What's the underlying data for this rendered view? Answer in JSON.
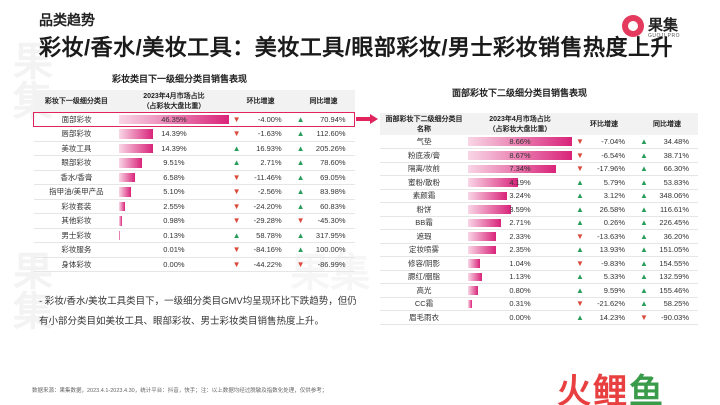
{
  "watermark": "果集",
  "header": {
    "section": "品类趋势",
    "title": "彩妆/香水/美妆工具：美妆工具/眼部彩妆/男士彩妆销售热度上升"
  },
  "logo": {
    "name": "果集",
    "sub": "GUOJI.PRO"
  },
  "left_table": {
    "title": "彩妆类目下一级细分类目销售表现",
    "headers": [
      "彩妆下一级细分类目",
      "2023年4月市场占比\n（占彩妆大盘比重）",
      "环比增速",
      "同比增速"
    ],
    "rows": [
      {
        "name": "面部彩妆",
        "share": "46.35%",
        "share_value": 46.35,
        "mom": "-4.00%",
        "mom_dir": "down",
        "yoy": "70.94%",
        "yoy_dir": "up"
      },
      {
        "name": "唇部彩妆",
        "share": "14.39%",
        "share_value": 14.39,
        "mom": "-1.63%",
        "mom_dir": "down",
        "yoy": "112.60%",
        "yoy_dir": "up"
      },
      {
        "name": "美妆工具",
        "share": "14.39%",
        "share_value": 14.39,
        "mom": "16.93%",
        "mom_dir": "up",
        "yoy": "205.26%",
        "yoy_dir": "up"
      },
      {
        "name": "眼部彩妆",
        "share": "9.51%",
        "share_value": 9.51,
        "mom": "2.71%",
        "mom_dir": "up",
        "yoy": "78.60%",
        "yoy_dir": "up"
      },
      {
        "name": "香水/香膏",
        "share": "6.58%",
        "share_value": 6.58,
        "mom": "-11.46%",
        "mom_dir": "down",
        "yoy": "69.05%",
        "yoy_dir": "up"
      },
      {
        "name": "指甲油/美甲产品",
        "share": "5.10%",
        "share_value": 5.1,
        "mom": "-2.56%",
        "mom_dir": "down",
        "yoy": "83.98%",
        "yoy_dir": "up"
      },
      {
        "name": "彩妆套装",
        "share": "2.55%",
        "share_value": 2.55,
        "mom": "-24.20%",
        "mom_dir": "down",
        "yoy": "60.83%",
        "yoy_dir": "up"
      },
      {
        "name": "其他彩妆",
        "share": "0.98%",
        "share_value": 0.98,
        "mom": "-29.28%",
        "mom_dir": "down",
        "yoy": "-45.30%",
        "yoy_dir": "down"
      },
      {
        "name": "男士彩妆",
        "share": "0.13%",
        "share_value": 0.13,
        "mom": "58.78%",
        "mom_dir": "up",
        "yoy": "317.95%",
        "yoy_dir": "up"
      },
      {
        "name": "彩妆服务",
        "share": "0.01%",
        "share_value": 0.01,
        "mom": "-84.16%",
        "mom_dir": "down",
        "yoy": "100.00%",
        "yoy_dir": "up"
      },
      {
        "name": "身体彩妆",
        "share": "0.00%",
        "share_value": 0.0,
        "mom": "-44.22%",
        "mom_dir": "down",
        "yoy": "-86.99%",
        "yoy_dir": "down"
      }
    ]
  },
  "right_table": {
    "title": "面部彩妆下二级细分类目销售表现",
    "headers": [
      "面部彩妆下二级细分类目\n名称",
      "2023年4月市场占比\n（占彩妆大盘比重）",
      "环比增速",
      "同比增速"
    ],
    "rows": [
      {
        "name": "气垫",
        "share": "8.66%",
        "share_value": 8.66,
        "mom": "-7.04%",
        "mom_dir": "down",
        "yoy": "34.48%",
        "yoy_dir": "up"
      },
      {
        "name": "粉底液/膏",
        "share": "8.67%",
        "share_value": 8.67,
        "mom": "-6.54%",
        "mom_dir": "down",
        "yoy": "38.71%",
        "yoy_dir": "up"
      },
      {
        "name": "隔离/妆前",
        "share": "7.34%",
        "share_value": 7.34,
        "mom": "-17.96%",
        "mom_dir": "down",
        "yoy": "66.30%",
        "yoy_dir": "up"
      },
      {
        "name": "蜜粉/散粉",
        "share": "4.19%",
        "share_value": 4.19,
        "mom": "5.79%",
        "mom_dir": "up",
        "yoy": "53.83%",
        "yoy_dir": "up"
      },
      {
        "name": "素颜霜",
        "share": "3.24%",
        "share_value": 3.24,
        "mom": "3.12%",
        "mom_dir": "up",
        "yoy": "348.06%",
        "yoy_dir": "up"
      },
      {
        "name": "粉饼",
        "share": "3.59%",
        "share_value": 3.59,
        "mom": "26.58%",
        "mom_dir": "up",
        "yoy": "116.61%",
        "yoy_dir": "up"
      },
      {
        "name": "BB霜",
        "share": "2.71%",
        "share_value": 2.71,
        "mom": "0.26%",
        "mom_dir": "up",
        "yoy": "226.45%",
        "yoy_dir": "up"
      },
      {
        "name": "遮瑕",
        "share": "2.33%",
        "share_value": 2.33,
        "mom": "-13.63%",
        "mom_dir": "down",
        "yoy": "36.20%",
        "yoy_dir": "up"
      },
      {
        "name": "定妆喷雾",
        "share": "2.35%",
        "share_value": 2.35,
        "mom": "13.93%",
        "mom_dir": "up",
        "yoy": "151.05%",
        "yoy_dir": "up"
      },
      {
        "name": "修容/阴影",
        "share": "1.04%",
        "share_value": 1.04,
        "mom": "-9.83%",
        "mom_dir": "down",
        "yoy": "154.55%",
        "yoy_dir": "up"
      },
      {
        "name": "腮红/胭脂",
        "share": "1.13%",
        "share_value": 1.13,
        "mom": "5.33%",
        "mom_dir": "up",
        "yoy": "132.59%",
        "yoy_dir": "up"
      },
      {
        "name": "高光",
        "share": "0.80%",
        "share_value": 0.8,
        "mom": "9.59%",
        "mom_dir": "up",
        "yoy": "155.46%",
        "yoy_dir": "up"
      },
      {
        "name": "CC霜",
        "share": "0.31%",
        "share_value": 0.31,
        "mom": "-21.62%",
        "mom_dir": "down",
        "yoy": "58.25%",
        "yoy_dir": "up"
      },
      {
        "name": "眉毛雨衣",
        "share": "0.00%",
        "share_value": 0.0,
        "mom": "14.23%",
        "mom_dir": "up",
        "yoy": "-90.03%",
        "yoy_dir": "down"
      }
    ]
  },
  "note": "- 彩妆/香水/美妆工具类目下，一级细分类目GMV均呈现环比下跌趋势，但仍有小部分类目如美妆工具、眼部彩妆、男士彩妆类目销售热度上升。",
  "footer": "数据来源：果集数据，2023.4.1-2023.4.30，统计平台：抖音，快手；注：以上数据均经过脱敏及指数化处理，仅供参考；",
  "brand": {
    "part1": "火鲤",
    "part2": "鱼"
  },
  "colors": {
    "accent": "#d9247a",
    "up": "#2a9d5c",
    "down": "#d94a3b",
    "highlight_border": "#e0245e"
  }
}
